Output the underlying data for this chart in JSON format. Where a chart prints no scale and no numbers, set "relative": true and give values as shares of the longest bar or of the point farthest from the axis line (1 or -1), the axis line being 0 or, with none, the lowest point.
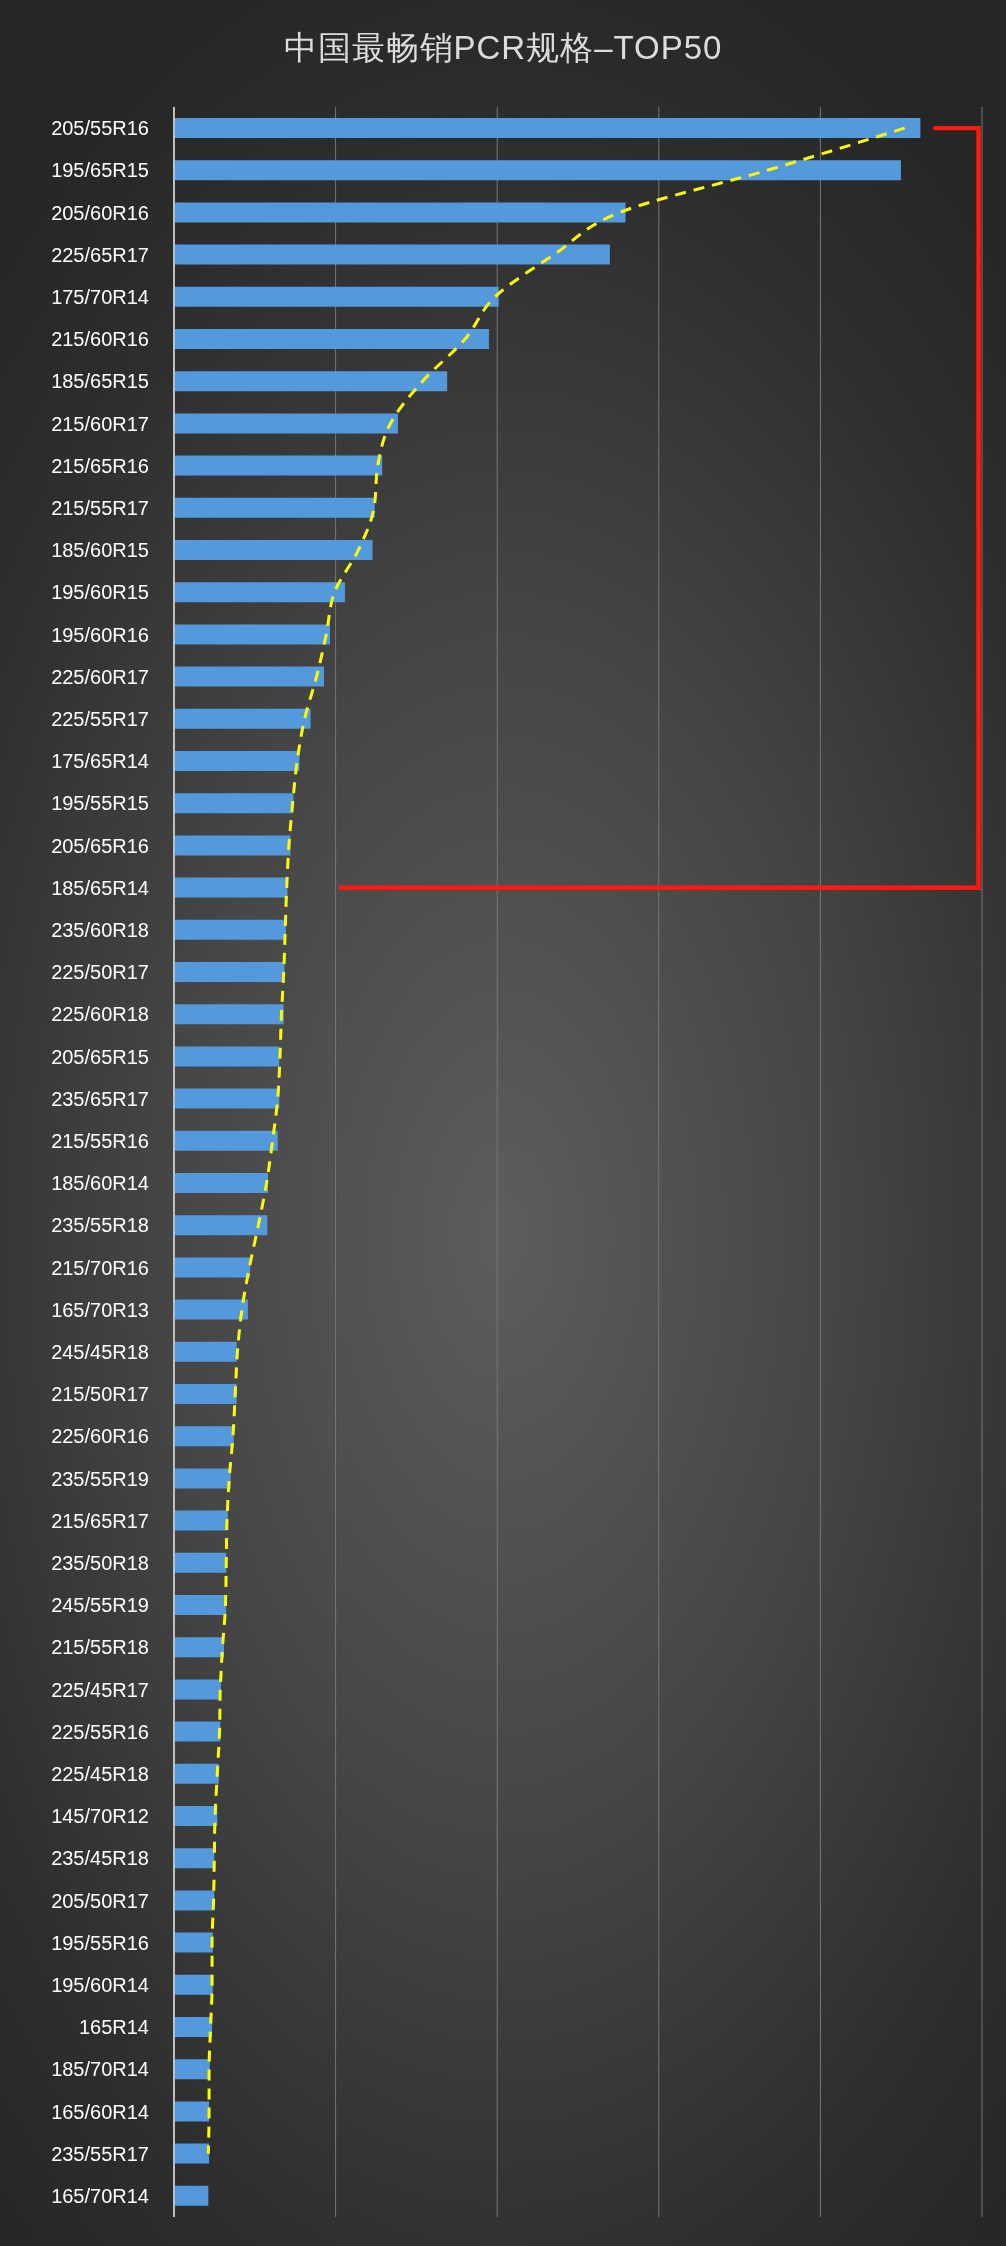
{
  "chart_data": {
    "type": "bar",
    "title": "中国最畅销PCR规格–TOP50",
    "orientation": "horizontal",
    "relative": true,
    "grid": "x",
    "categories": [
      "205/55R16",
      "195/65R15",
      "205/60R16",
      "225/65R17",
      "175/70R14",
      "215/60R16",
      "185/65R15",
      "215/60R17",
      "215/65R16",
      "215/55R17",
      "185/60R15",
      "195/60R15",
      "195/60R16",
      "225/60R17",
      "225/55R17",
      "175/65R14",
      "195/55R15",
      "205/65R16",
      "185/65R14",
      "235/60R18",
      "225/50R17",
      "225/60R18",
      "205/65R15",
      "235/65R17",
      "215/55R16",
      "185/60R14",
      "235/55R18",
      "215/70R16",
      "165/70R13",
      "245/45R18",
      "215/50R17",
      "225/60R16",
      "235/55R19",
      "215/65R17",
      "235/50R18",
      "245/55R19",
      "215/55R18",
      "225/45R17",
      "225/55R16",
      "225/45R18",
      "145/70R12",
      "235/45R18",
      "205/50R17",
      "195/55R16",
      "195/60R14",
      "165R14",
      "185/70R14",
      "165/60R14",
      "235/55R17",
      "165/70R14"
    ],
    "series": [
      {
        "color": "#5599dd",
        "values": [
          1,
          0.974,
          0.605,
          0.584,
          0.435,
          0.422,
          0.366,
          0.3,
          0.279,
          0.269,
          0.266,
          0.229,
          0.209,
          0.201,
          0.183,
          0.168,
          0.16,
          0.156,
          0.152,
          0.15,
          0.148,
          0.147,
          0.141,
          0.141,
          0.139,
          0.126,
          0.125,
          0.102,
          0.099,
          0.084,
          0.084,
          0.08,
          0.076,
          0.072,
          0.07,
          0.07,
          0.067,
          0.063,
          0.062,
          0.06,
          0.058,
          0.054,
          0.054,
          0.052,
          0.052,
          0.051,
          0.048,
          0.047,
          0.047,
          0.046
        ]
      },
      {
        "type": "line",
        "color": "#ffff00",
        "line_style": "dashed",
        "marker": "none",
        "values": [
          0.979,
          0.795,
          0.597,
          0.509,
          0.43,
          0.39,
          0.333,
          0.29,
          0.273,
          0.268,
          0.247,
          0.215,
          0.204,
          0.191,
          0.175,
          0.165,
          0.159,
          0.154,
          0.151,
          0.149,
          0.147,
          0.144,
          0.142,
          0.139,
          0.132,
          0.124,
          0.113,
          0.101,
          0.091,
          0.085,
          0.082,
          0.079,
          0.074,
          0.071,
          0.07,
          0.069,
          0.065,
          0.062,
          0.061,
          0.058,
          0.055,
          0.054,
          0.053,
          0.051,
          0.051,
          0.049,
          0.047,
          0.047,
          0.046,
          null
        ]
      }
    ]
  }
}
